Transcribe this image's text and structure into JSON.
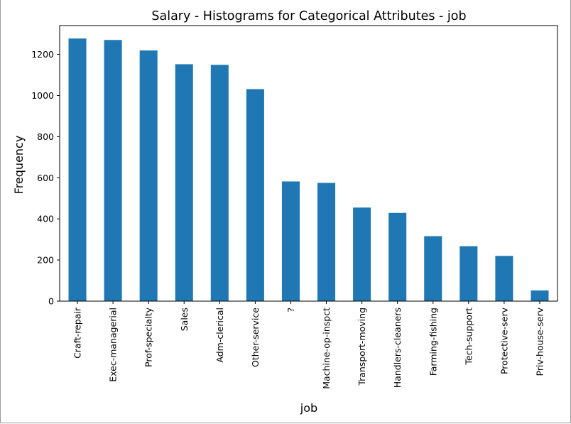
{
  "chart_data": {
    "type": "bar",
    "title": "Salary - Histograms for Categorical Attributes - job",
    "xlabel": "job",
    "ylabel": "Frequency",
    "categories": [
      "Craft-repair",
      "Exec-managerial",
      "Prof-specialty",
      "Sales",
      "Adm-clerical",
      "Other-service",
      "?",
      "Machine-op-inspct",
      "Transport-moving",
      "Handlers-cleaners",
      "Farming-fishing",
      "Tech-support",
      "Protective-serv",
      "Priv-house-serv"
    ],
    "values": [
      1277,
      1270,
      1219,
      1152,
      1149,
      1031,
      582,
      575,
      455,
      429,
      316,
      267,
      220,
      52
    ],
    "ylim": [
      0,
      1340
    ],
    "yticks": [
      0,
      200,
      400,
      600,
      800,
      1000,
      1200
    ],
    "bar_color": "#1f77b4",
    "grid": false,
    "legend": "none"
  }
}
